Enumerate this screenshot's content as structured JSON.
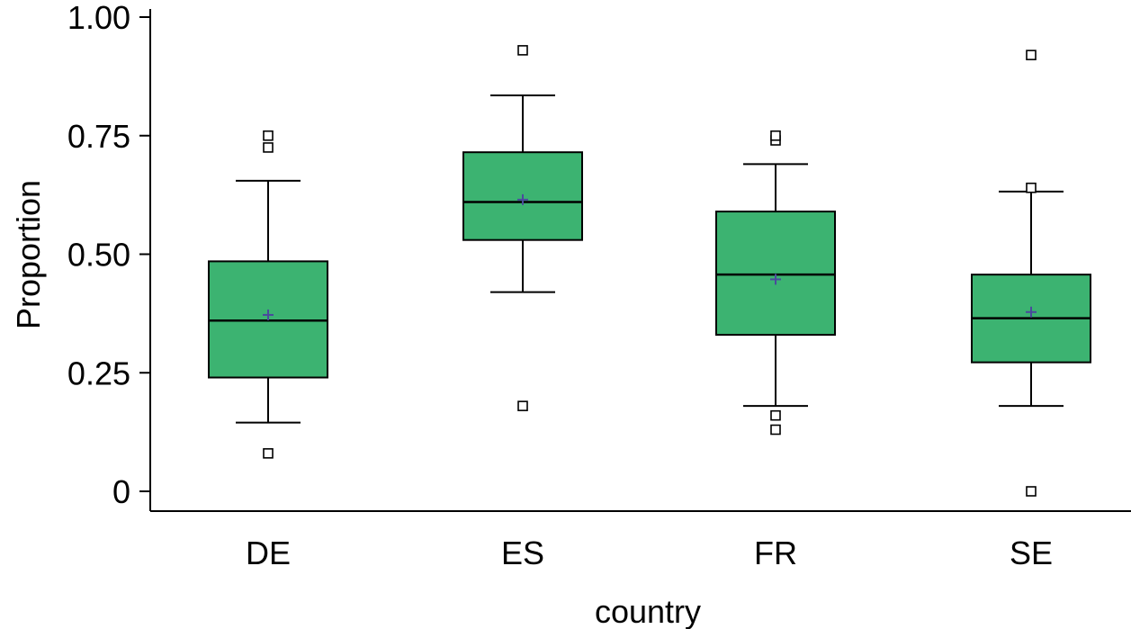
{
  "chart_data": {
    "type": "boxplot",
    "xlabel": "country",
    "ylabel": "Proportion",
    "ylim": [
      0,
      1
    ],
    "y_ticks": [
      {
        "value": 0,
        "label": "0"
      },
      {
        "value": 0.25,
        "label": "0.25"
      },
      {
        "value": 0.5,
        "label": "0.50"
      },
      {
        "value": 0.75,
        "label": "0.75"
      },
      {
        "value": 1.0,
        "label": "1.00"
      }
    ],
    "categories": [
      "DE",
      "ES",
      "FR",
      "SE"
    ],
    "boxes": [
      {
        "category": "DE",
        "whisker_low": 0.145,
        "q1": 0.24,
        "median": 0.36,
        "q3": 0.485,
        "whisker_high": 0.655,
        "mean": 0.372,
        "outliers": [
          0.08,
          0.725,
          0.75
        ]
      },
      {
        "category": "ES",
        "whisker_low": 0.42,
        "q1": 0.53,
        "median": 0.61,
        "q3": 0.715,
        "whisker_high": 0.835,
        "mean": 0.615,
        "outliers": [
          0.18,
          0.93
        ]
      },
      {
        "category": "FR",
        "whisker_low": 0.18,
        "q1": 0.33,
        "median": 0.457,
        "q3": 0.59,
        "whisker_high": 0.69,
        "mean": 0.447,
        "outliers": [
          0.13,
          0.16,
          0.74,
          0.75
        ]
      },
      {
        "category": "SE",
        "whisker_low": 0.18,
        "q1": 0.272,
        "median": 0.365,
        "q3": 0.457,
        "whisker_high": 0.632,
        "mean": 0.378,
        "outliers": [
          0.0,
          0.64,
          0.92
        ]
      }
    ],
    "colors": {
      "box_fill": "#3cb371",
      "stroke": "#000000",
      "mean_marker": "#4a4a9c",
      "outlier_fill": "#ffffff"
    },
    "grid": false,
    "legend": "none"
  }
}
